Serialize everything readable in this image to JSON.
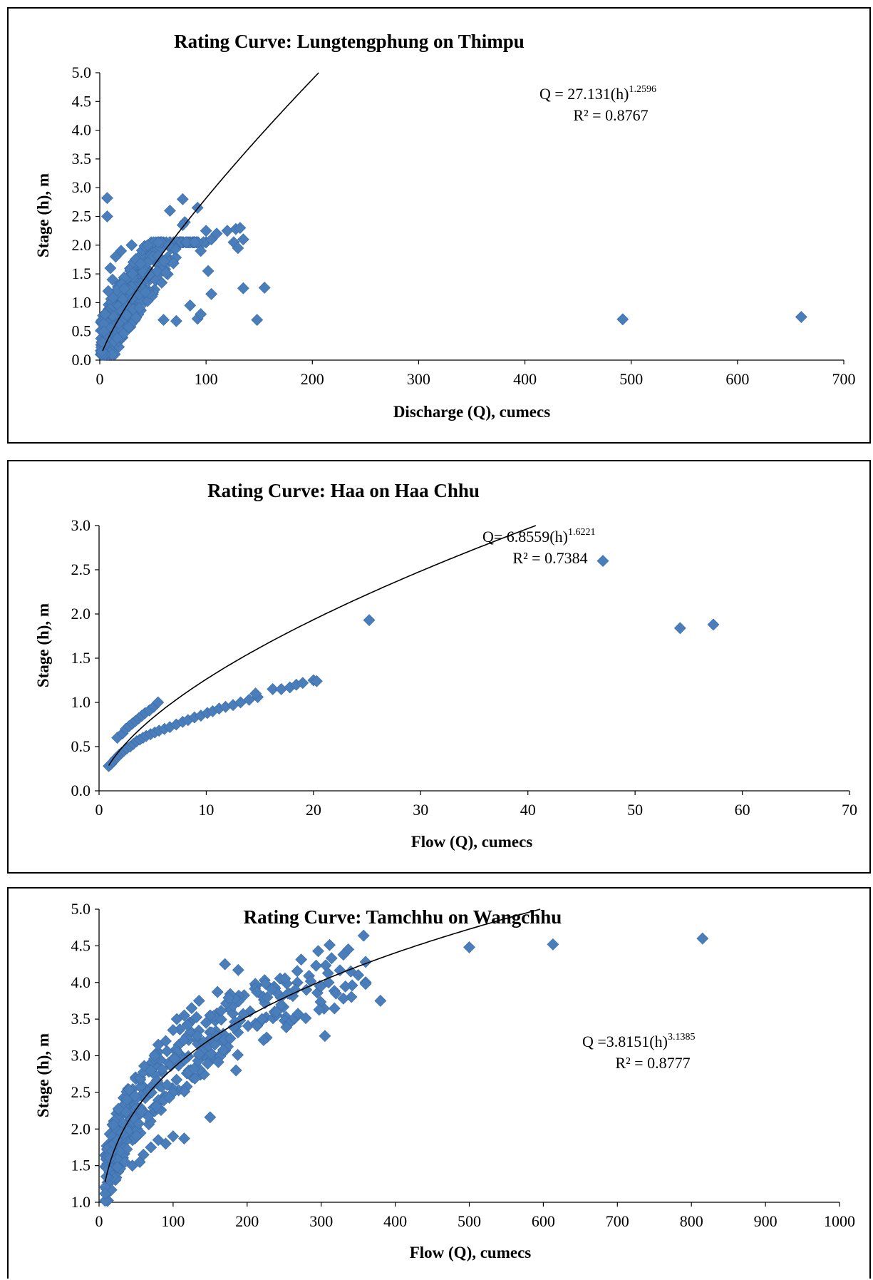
{
  "colors": {
    "marker": "#4a7ebb",
    "marker_stroke": "#3a6aa6",
    "curve": "#000000",
    "axis": "#000000"
  },
  "chart_data": [
    {
      "type": "scatter",
      "title": "Rating Curve: Lungtengphung on Thimpu",
      "xlabel": "Discharge (Q), cumecs",
      "ylabel": "Stage (h), m",
      "xlim": [
        0,
        700
      ],
      "ylim": [
        0,
        5.0
      ],
      "xticks": [
        0,
        100,
        200,
        300,
        400,
        500,
        600,
        700
      ],
      "xtick_labels": [
        "0",
        "100",
        "200",
        "300",
        "400",
        "500",
        "600",
        "700"
      ],
      "yticks": [
        0,
        0.5,
        1.0,
        1.5,
        2.0,
        2.5,
        3.0,
        3.5,
        4.0,
        4.5,
        5.0
      ],
      "ytick_labels": [
        "0.0",
        "0.5",
        "1.0",
        "1.5",
        "2.0",
        "2.5",
        "3.0",
        "3.5",
        "4.0",
        "4.5",
        "5.0"
      ],
      "grid": false,
      "fit": {
        "a": 27.131,
        "b": 1.2596
      },
      "equation": {
        "prefix": "Q = 27.131(h)",
        "exponent": "1.2596",
        "r2": "R² = 0.8767"
      },
      "cloud": {
        "x_range": [
          1,
          100
        ],
        "y_base": 0.15,
        "y_coef": 0.012,
        "y_spread": 1.1,
        "count": 420
      },
      "points": [
        [
          7,
          2.82
        ],
        [
          7,
          2.5
        ],
        [
          78,
          2.8
        ],
        [
          92,
          2.65
        ],
        [
          66,
          2.6
        ],
        [
          80,
          2.4
        ],
        [
          78,
          2.35
        ],
        [
          100,
          2.25
        ],
        [
          105,
          2.1
        ],
        [
          110,
          2.2
        ],
        [
          120,
          2.25
        ],
        [
          128,
          2.28
        ],
        [
          132,
          2.3
        ],
        [
          126,
          2.05
        ],
        [
          135,
          2.1
        ],
        [
          130,
          1.95
        ],
        [
          95,
          1.9
        ],
        [
          102,
          1.55
        ],
        [
          105,
          1.15
        ],
        [
          135,
          1.25
        ],
        [
          155,
          1.26
        ],
        [
          148,
          0.7
        ],
        [
          92,
          0.72
        ],
        [
          95,
          0.8
        ],
        [
          85,
          0.95
        ],
        [
          60,
          0.7
        ],
        [
          72,
          0.68
        ],
        [
          492,
          0.71
        ],
        [
          660,
          0.75
        ],
        [
          20,
          1.9
        ],
        [
          30,
          2.0
        ],
        [
          45,
          2.0
        ],
        [
          55,
          2.05
        ],
        [
          65,
          2.0
        ],
        [
          15,
          1.8
        ],
        [
          10,
          1.6
        ],
        [
          3,
          0.3
        ],
        [
          2,
          0.15
        ],
        [
          4,
          0.5
        ],
        [
          5,
          0.8
        ],
        [
          8,
          1.2
        ],
        [
          12,
          1.4
        ]
      ]
    },
    {
      "type": "scatter",
      "title": "Rating Curve: Haa on Haa Chhu",
      "xlabel": "Flow (Q), cumecs",
      "ylabel": "Stage (h), m",
      "xlim": [
        0,
        70
      ],
      "ylim": [
        0,
        3.0
      ],
      "xticks": [
        0,
        10,
        20,
        30,
        40,
        50,
        60,
        70
      ],
      "xtick_labels": [
        "0",
        "10",
        "20",
        "30",
        "40",
        "50",
        "60",
        "70"
      ],
      "yticks": [
        0,
        0.5,
        1.0,
        1.5,
        2.0,
        2.5,
        3.0
      ],
      "ytick_labels": [
        "0.0",
        "0.5",
        "1.0",
        "1.5",
        "2.0",
        "2.5",
        "3.0"
      ],
      "grid": false,
      "fit": {
        "a": 6.8559,
        "b": 1.6221
      },
      "equation": {
        "prefix": "Q= 6.8559(h)",
        "exponent": "1.6221",
        "r2": "R² = 0.7384"
      },
      "points": [
        [
          0.9,
          0.28
        ],
        [
          1.1,
          0.3
        ],
        [
          1.3,
          0.33
        ],
        [
          1.5,
          0.36
        ],
        [
          1.7,
          0.38
        ],
        [
          1.9,
          0.41
        ],
        [
          2.1,
          0.43
        ],
        [
          2.3,
          0.45
        ],
        [
          2.6,
          0.48
        ],
        [
          2.9,
          0.5
        ],
        [
          3.2,
          0.53
        ],
        [
          3.5,
          0.56
        ],
        [
          3.8,
          0.58
        ],
        [
          4.1,
          0.6
        ],
        [
          4.4,
          0.62
        ],
        [
          4.8,
          0.64
        ],
        [
          5.2,
          0.66
        ],
        [
          5.6,
          0.68
        ],
        [
          6.1,
          0.7
        ],
        [
          6.6,
          0.72
        ],
        [
          7.2,
          0.75
        ],
        [
          7.8,
          0.78
        ],
        [
          8.3,
          0.8
        ],
        [
          8.9,
          0.83
        ],
        [
          9.5,
          0.85
        ],
        [
          10.1,
          0.88
        ],
        [
          10.6,
          0.9
        ],
        [
          11.2,
          0.93
        ],
        [
          11.8,
          0.95
        ],
        [
          12.5,
          0.97
        ],
        [
          13.2,
          1.0
        ],
        [
          14.0,
          1.03
        ],
        [
          14.8,
          1.06
        ],
        [
          14.6,
          1.1
        ],
        [
          16.2,
          1.15
        ],
        [
          17.0,
          1.15
        ],
        [
          17.8,
          1.17
        ],
        [
          18.4,
          1.2
        ],
        [
          19.0,
          1.22
        ],
        [
          20.0,
          1.25
        ],
        [
          20.3,
          1.24
        ],
        [
          1.7,
          0.6
        ],
        [
          2.2,
          0.65
        ],
        [
          2.5,
          0.7
        ],
        [
          2.8,
          0.73
        ],
        [
          3.1,
          0.76
        ],
        [
          3.4,
          0.79
        ],
        [
          3.7,
          0.82
        ],
        [
          4.0,
          0.85
        ],
        [
          4.3,
          0.88
        ],
        [
          4.7,
          0.91
        ],
        [
          5.1,
          0.95
        ],
        [
          5.5,
          1.0
        ],
        [
          25.2,
          1.93
        ],
        [
          47.0,
          2.6
        ],
        [
          54.2,
          1.84
        ],
        [
          57.3,
          1.88
        ]
      ]
    },
    {
      "type": "scatter",
      "title": "Rating Curve: Tamchhu on Wangchhu",
      "xlabel": "Flow (Q), cumecs",
      "ylabel": "Stage (h), m",
      "xlim": [
        0,
        1000
      ],
      "ylim": [
        1.0,
        5.0
      ],
      "xticks": [
        0,
        100,
        200,
        300,
        400,
        500,
        600,
        700,
        800,
        900,
        1000
      ],
      "xtick_labels": [
        "0",
        "100",
        "200",
        "300",
        "400",
        "500",
        "600",
        "700",
        "800",
        "900",
        "1000"
      ],
      "yticks": [
        1.0,
        1.5,
        2.0,
        2.5,
        3.0,
        3.5,
        4.0,
        4.5,
        5.0
      ],
      "ytick_labels": [
        "1.0",
        "1.5",
        "2.0",
        "2.5",
        "3.0",
        "3.5",
        "4.0",
        "4.5",
        "5.0"
      ],
      "grid": false,
      "fit": {
        "a": 3.8151,
        "b": 3.1385
      },
      "equation": {
        "prefix": "Q =3.8151(h)",
        "exponent": "3.1385",
        "r2": "R² = 0.8777"
      },
      "cloud": {
        "x_range": [
          8,
          360
        ],
        "y_spread": 0.45,
        "count": 360
      },
      "points": [
        [
          10,
          1.35
        ],
        [
          12,
          1.45
        ],
        [
          15,
          1.6
        ],
        [
          18,
          1.7
        ],
        [
          20,
          1.8
        ],
        [
          25,
          1.85
        ],
        [
          30,
          1.95
        ],
        [
          35,
          1.55
        ],
        [
          45,
          1.5
        ],
        [
          55,
          1.55
        ],
        [
          60,
          1.65
        ],
        [
          70,
          1.75
        ],
        [
          80,
          1.85
        ],
        [
          90,
          1.8
        ],
        [
          100,
          1.9
        ],
        [
          115,
          1.87
        ],
        [
          150,
          2.16
        ],
        [
          185,
          2.8
        ],
        [
          305,
          3.27
        ],
        [
          70,
          2.8
        ],
        [
          75,
          3.0
        ],
        [
          80,
          3.15
        ],
        [
          90,
          3.2
        ],
        [
          100,
          3.35
        ],
        [
          105,
          3.5
        ],
        [
          115,
          3.55
        ],
        [
          125,
          3.65
        ],
        [
          135,
          3.75
        ],
        [
          150,
          3.55
        ],
        [
          160,
          3.87
        ],
        [
          170,
          4.25
        ],
        [
          188,
          4.17
        ],
        [
          220,
          3.5
        ],
        [
          240,
          3.6
        ],
        [
          255,
          3.85
        ],
        [
          265,
          3.9
        ],
        [
          280,
          3.9
        ],
        [
          300,
          3.95
        ],
        [
          310,
          4.0
        ],
        [
          330,
          4.38
        ],
        [
          340,
          4.15
        ],
        [
          350,
          4.1
        ],
        [
          360,
          3.98
        ],
        [
          380,
          3.75
        ],
        [
          330,
          3.78
        ],
        [
          320,
          3.85
        ],
        [
          500,
          4.48
        ],
        [
          613,
          4.52
        ],
        [
          815,
          4.6
        ]
      ]
    }
  ]
}
